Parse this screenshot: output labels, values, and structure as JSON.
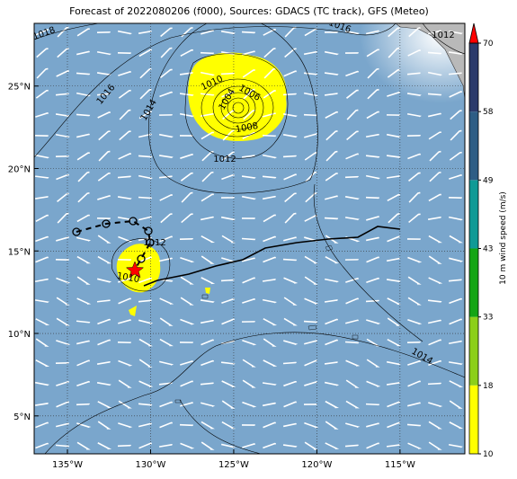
{
  "map": {
    "title": "Forecast of 2022080206 (f000), Sources: GDACS (TC track), GFS (Meteo)",
    "xlim": [
      -137,
      -111.1
    ],
    "ylim": [
      2.7,
      28.8
    ],
    "xticks": [
      {
        "value": -135,
        "label": "135°W"
      },
      {
        "value": -130,
        "label": "130°W"
      },
      {
        "value": -125,
        "label": "125°W"
      },
      {
        "value": -120,
        "label": "120°W"
      },
      {
        "value": -115,
        "label": "115°W"
      }
    ],
    "yticks": [
      {
        "value": 5,
        "label": "5°N"
      },
      {
        "value": 10,
        "label": "10°N"
      },
      {
        "value": 15,
        "label": "15°N"
      },
      {
        "value": 20,
        "label": "20°N"
      },
      {
        "value": 25,
        "label": "25°N"
      }
    ],
    "grid": true,
    "contour_labels": [
      "1018",
      "1016",
      "1012",
      "1016",
      "1014",
      "1010",
      "1006",
      "1004",
      "1008",
      "1012",
      "1012",
      "1010",
      "1014"
    ]
  },
  "colorbar": {
    "label": "10 m wind speed (m/s)",
    "ticks": [
      10,
      18,
      33,
      43,
      49,
      58,
      70
    ],
    "colors": [
      "#ffff00",
      "#8ccf1a",
      "#14a514",
      "#0f9a96",
      "#2e5d85",
      "#2b3a6b"
    ],
    "extend_color": "#ff0000"
  }
}
